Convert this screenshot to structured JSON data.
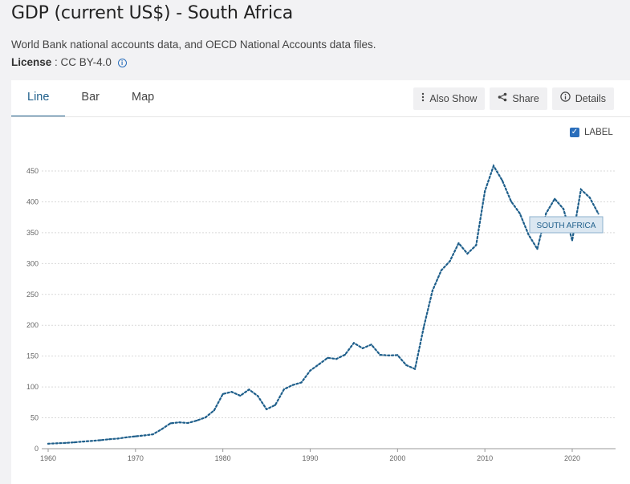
{
  "header": {
    "title": "GDP (current US$) - South Africa",
    "source": "World Bank national accounts data, and OECD National Accounts data files.",
    "license_label": "License",
    "license_value": ": CC BY-4.0"
  },
  "tabs": [
    {
      "label": "Line",
      "active": true
    },
    {
      "label": "Bar",
      "active": false
    },
    {
      "label": "Map",
      "active": false
    }
  ],
  "actions": {
    "also_show": "Also Show",
    "share": "Share",
    "details": "Details"
  },
  "label_toggle": {
    "label": "LABEL",
    "checked": true
  },
  "colors": {
    "series": "#1f5f8b",
    "grid": "#d9d9d9"
  },
  "chart_data": {
    "type": "line",
    "title": "GDP (current US$) - South Africa",
    "xlabel": "",
    "ylabel": "",
    "xlim": [
      1960,
      2023
    ],
    "ylim": [
      0,
      450
    ],
    "x_ticks": [
      "1960",
      "1970",
      "1980",
      "1990",
      "2000",
      "2010",
      "2020"
    ],
    "x_tick_values": [
      1960,
      1970,
      1980,
      1990,
      2000,
      2010,
      2020
    ],
    "y_ticks": [
      "0",
      "50",
      "100",
      "150",
      "200",
      "250",
      "300",
      "350",
      "400",
      "450"
    ],
    "y_tick_values": [
      0,
      50,
      100,
      150,
      200,
      250,
      300,
      350,
      400,
      450
    ],
    "grid": true,
    "line_style": "dotted",
    "series": [
      {
        "name": "SOUTH AFRICA",
        "x": [
          1960,
          1961,
          1962,
          1963,
          1964,
          1965,
          1966,
          1967,
          1968,
          1969,
          1970,
          1971,
          1972,
          1973,
          1974,
          1975,
          1976,
          1977,
          1978,
          1979,
          1980,
          1981,
          1982,
          1983,
          1984,
          1985,
          1986,
          1987,
          1988,
          1989,
          1990,
          1991,
          1992,
          1993,
          1994,
          1995,
          1996,
          1997,
          1998,
          1999,
          2000,
          2001,
          2002,
          2003,
          2004,
          2005,
          2006,
          2007,
          2008,
          2009,
          2010,
          2011,
          2012,
          2013,
          2014,
          2015,
          2016,
          2017,
          2018,
          2019,
          2020,
          2021,
          2022,
          2023
        ],
        "y": [
          8,
          8.7,
          9.3,
          10.3,
          11.6,
          12.6,
          13.8,
          15.3,
          16.4,
          18.5,
          20,
          21.4,
          23.3,
          31.6,
          41.1,
          42.7,
          41.6,
          45.5,
          50.6,
          62.1,
          88.6,
          92.1,
          85.8,
          95.9,
          85.5,
          63.8,
          70.7,
          96.3,
          103.1,
          107.3,
          126.6,
          136.7,
          147.2,
          145.4,
          152.4,
          171.3,
          162.7,
          168.7,
          152,
          151.1,
          151.7,
          135.4,
          129.1,
          197,
          256.1,
          288.9,
          303.9,
          333.1,
          316.1,
          329.7,
          417.4,
          458.2,
          434.4,
          400.9,
          381.2,
          346.7,
          323.6,
          381.3,
          404.9,
          388.5,
          337.6,
          420.1,
          406.9,
          380.7
        ]
      }
    ]
  }
}
